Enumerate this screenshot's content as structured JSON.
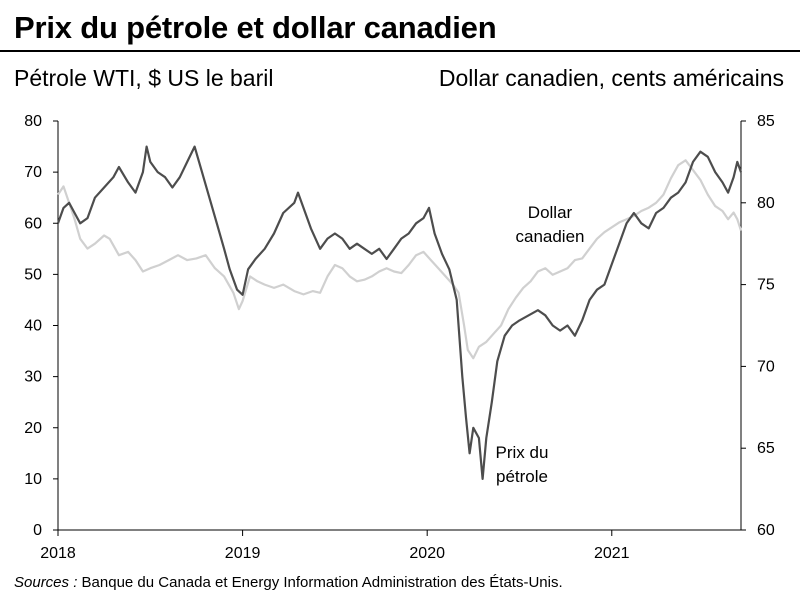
{
  "title": "Prix du pétrole et dollar canadien",
  "source_prefix": "Sources :",
  "source_text": " Banque du Canada et Energy Information Administration des États-Unis.",
  "chart_data": {
    "type": "line",
    "title": "Prix du pétrole et dollar canadien",
    "y_left_label": "Pétrole WTI, $ US le baril",
    "y_right_label": "Dollar canadien, cents américains",
    "x_ticks": [
      "2018",
      "2019",
      "2020",
      "2021"
    ],
    "x_range": [
      2018.0,
      2021.7
    ],
    "y_left_range": [
      0,
      80
    ],
    "y_left_ticks": [
      0,
      10,
      20,
      30,
      40,
      50,
      60,
      70,
      80
    ],
    "y_right_range": [
      60,
      85
    ],
    "y_right_ticks": [
      60,
      65,
      70,
      75,
      80,
      85
    ],
    "grid": false,
    "annotations": [
      {
        "lines": [
          "Dollar",
          "canadien"
        ],
        "series": "Dollar canadien"
      },
      {
        "lines": [
          "Prix du",
          "pétrole"
        ],
        "series": "Prix du pétrole"
      }
    ],
    "series": [
      {
        "name": "Prix du pétrole",
        "axis": "left",
        "color": "#4d4d4d",
        "points": [
          [
            2018.0,
            60
          ],
          [
            2018.03,
            63
          ],
          [
            2018.06,
            64
          ],
          [
            2018.09,
            62
          ],
          [
            2018.12,
            60
          ],
          [
            2018.16,
            61
          ],
          [
            2018.2,
            65
          ],
          [
            2018.25,
            67
          ],
          [
            2018.3,
            69
          ],
          [
            2018.33,
            71
          ],
          [
            2018.38,
            68
          ],
          [
            2018.42,
            66
          ],
          [
            2018.46,
            70
          ],
          [
            2018.48,
            75
          ],
          [
            2018.5,
            72
          ],
          [
            2018.54,
            70
          ],
          [
            2018.58,
            69
          ],
          [
            2018.62,
            67
          ],
          [
            2018.66,
            69
          ],
          [
            2018.7,
            72
          ],
          [
            2018.74,
            75
          ],
          [
            2018.78,
            70
          ],
          [
            2018.82,
            65
          ],
          [
            2018.86,
            60
          ],
          [
            2018.9,
            55
          ],
          [
            2018.93,
            51
          ],
          [
            2018.97,
            47
          ],
          [
            2019.0,
            46
          ],
          [
            2019.03,
            51
          ],
          [
            2019.07,
            53
          ],
          [
            2019.12,
            55
          ],
          [
            2019.17,
            58
          ],
          [
            2019.22,
            62
          ],
          [
            2019.28,
            64
          ],
          [
            2019.3,
            66
          ],
          [
            2019.33,
            63
          ],
          [
            2019.37,
            59
          ],
          [
            2019.42,
            55
          ],
          [
            2019.46,
            57
          ],
          [
            2019.5,
            58
          ],
          [
            2019.54,
            57
          ],
          [
            2019.58,
            55
          ],
          [
            2019.62,
            56
          ],
          [
            2019.66,
            55
          ],
          [
            2019.7,
            54
          ],
          [
            2019.74,
            55
          ],
          [
            2019.78,
            53
          ],
          [
            2019.82,
            55
          ],
          [
            2019.86,
            57
          ],
          [
            2019.9,
            58
          ],
          [
            2019.94,
            60
          ],
          [
            2019.98,
            61
          ],
          [
            2020.01,
            63
          ],
          [
            2020.04,
            58
          ],
          [
            2020.08,
            54
          ],
          [
            2020.12,
            51
          ],
          [
            2020.16,
            45
          ],
          [
            2020.19,
            30
          ],
          [
            2020.21,
            22
          ],
          [
            2020.23,
            15
          ],
          [
            2020.25,
            20
          ],
          [
            2020.28,
            18
          ],
          [
            2020.3,
            10
          ],
          [
            2020.32,
            18
          ],
          [
            2020.35,
            25
          ],
          [
            2020.38,
            33
          ],
          [
            2020.42,
            38
          ],
          [
            2020.46,
            40
          ],
          [
            2020.5,
            41
          ],
          [
            2020.55,
            42
          ],
          [
            2020.6,
            43
          ],
          [
            2020.64,
            42
          ],
          [
            2020.68,
            40
          ],
          [
            2020.72,
            39
          ],
          [
            2020.76,
            40
          ],
          [
            2020.8,
            38
          ],
          [
            2020.84,
            41
          ],
          [
            2020.88,
            45
          ],
          [
            2020.92,
            47
          ],
          [
            2020.96,
            48
          ],
          [
            2021.0,
            52
          ],
          [
            2021.04,
            56
          ],
          [
            2021.08,
            60
          ],
          [
            2021.12,
            62
          ],
          [
            2021.16,
            60
          ],
          [
            2021.2,
            59
          ],
          [
            2021.24,
            62
          ],
          [
            2021.28,
            63
          ],
          [
            2021.32,
            65
          ],
          [
            2021.36,
            66
          ],
          [
            2021.4,
            68
          ],
          [
            2021.44,
            72
          ],
          [
            2021.48,
            74
          ],
          [
            2021.52,
            73
          ],
          [
            2021.56,
            70
          ],
          [
            2021.6,
            68
          ],
          [
            2021.63,
            66
          ],
          [
            2021.66,
            69
          ],
          [
            2021.68,
            72
          ],
          [
            2021.7,
            70
          ]
        ]
      },
      {
        "name": "Dollar canadien",
        "axis": "right",
        "color": "#d0d0d0",
        "points": [
          [
            2018.0,
            80.5
          ],
          [
            2018.03,
            81.0
          ],
          [
            2018.06,
            80.0
          ],
          [
            2018.09,
            79.0
          ],
          [
            2018.12,
            77.8
          ],
          [
            2018.16,
            77.2
          ],
          [
            2018.2,
            77.5
          ],
          [
            2018.25,
            78.0
          ],
          [
            2018.28,
            77.8
          ],
          [
            2018.33,
            76.8
          ],
          [
            2018.38,
            77.0
          ],
          [
            2018.42,
            76.5
          ],
          [
            2018.46,
            75.8
          ],
          [
            2018.5,
            76.0
          ],
          [
            2018.55,
            76.2
          ],
          [
            2018.6,
            76.5
          ],
          [
            2018.65,
            76.8
          ],
          [
            2018.7,
            76.5
          ],
          [
            2018.75,
            76.6
          ],
          [
            2018.8,
            76.8
          ],
          [
            2018.85,
            76.0
          ],
          [
            2018.9,
            75.5
          ],
          [
            2018.95,
            74.5
          ],
          [
            2018.98,
            73.5
          ],
          [
            2019.0,
            74.0
          ],
          [
            2019.04,
            75.5
          ],
          [
            2019.08,
            75.2
          ],
          [
            2019.12,
            75.0
          ],
          [
            2019.17,
            74.8
          ],
          [
            2019.22,
            75.0
          ],
          [
            2019.28,
            74.6
          ],
          [
            2019.33,
            74.4
          ],
          [
            2019.38,
            74.6
          ],
          [
            2019.42,
            74.5
          ],
          [
            2019.46,
            75.5
          ],
          [
            2019.5,
            76.2
          ],
          [
            2019.54,
            76.0
          ],
          [
            2019.58,
            75.5
          ],
          [
            2019.62,
            75.2
          ],
          [
            2019.66,
            75.3
          ],
          [
            2019.7,
            75.5
          ],
          [
            2019.74,
            75.8
          ],
          [
            2019.78,
            76.0
          ],
          [
            2019.82,
            75.8
          ],
          [
            2019.86,
            75.7
          ],
          [
            2019.9,
            76.2
          ],
          [
            2019.94,
            76.8
          ],
          [
            2019.98,
            77.0
          ],
          [
            2020.02,
            76.5
          ],
          [
            2020.06,
            76.0
          ],
          [
            2020.1,
            75.5
          ],
          [
            2020.14,
            75.0
          ],
          [
            2020.17,
            74.5
          ],
          [
            2020.2,
            72.5
          ],
          [
            2020.22,
            71.0
          ],
          [
            2020.25,
            70.5
          ],
          [
            2020.28,
            71.2
          ],
          [
            2020.32,
            71.5
          ],
          [
            2020.36,
            72.0
          ],
          [
            2020.4,
            72.5
          ],
          [
            2020.44,
            73.5
          ],
          [
            2020.48,
            74.2
          ],
          [
            2020.52,
            74.8
          ],
          [
            2020.56,
            75.2
          ],
          [
            2020.6,
            75.8
          ],
          [
            2020.64,
            76.0
          ],
          [
            2020.68,
            75.6
          ],
          [
            2020.72,
            75.8
          ],
          [
            2020.76,
            76.0
          ],
          [
            2020.8,
            76.5
          ],
          [
            2020.84,
            76.6
          ],
          [
            2020.88,
            77.2
          ],
          [
            2020.92,
            77.8
          ],
          [
            2020.96,
            78.2
          ],
          [
            2021.0,
            78.5
          ],
          [
            2021.04,
            78.8
          ],
          [
            2021.08,
            79.0
          ],
          [
            2021.12,
            79.2
          ],
          [
            2021.16,
            79.5
          ],
          [
            2021.2,
            79.7
          ],
          [
            2021.24,
            80.0
          ],
          [
            2021.28,
            80.5
          ],
          [
            2021.32,
            81.5
          ],
          [
            2021.36,
            82.3
          ],
          [
            2021.4,
            82.6
          ],
          [
            2021.44,
            82.0
          ],
          [
            2021.48,
            81.4
          ],
          [
            2021.52,
            80.5
          ],
          [
            2021.56,
            79.8
          ],
          [
            2021.6,
            79.5
          ],
          [
            2021.63,
            79.0
          ],
          [
            2021.66,
            79.4
          ],
          [
            2021.68,
            79.0
          ],
          [
            2021.7,
            78.3
          ]
        ]
      }
    ]
  }
}
